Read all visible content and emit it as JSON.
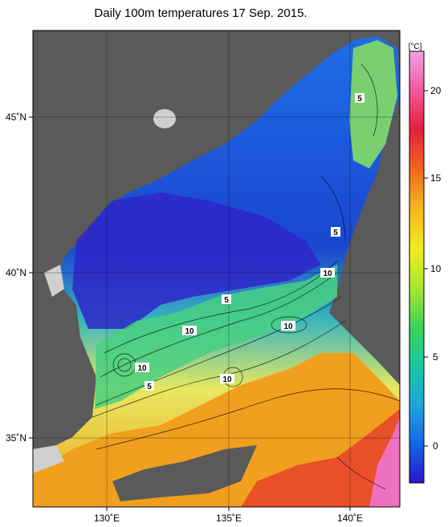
{
  "title": "Daily 100m temperatures 17 Sep. 2015.",
  "colorbar": {
    "unit": "[°C]",
    "ticks": [
      "20",
      "15",
      "10",
      "5",
      "0"
    ],
    "colors": [
      "#2a16c8",
      "#1466e6",
      "#1ea6dc",
      "#19c8a0",
      "#3cd25a",
      "#a6e632",
      "#f2ec1e",
      "#f6b41e",
      "#f0641e",
      "#e61e3c",
      "#f05aa0",
      "#f4a0e6"
    ]
  },
  "axes": {
    "x_ticks": [
      "130˚E",
      "135˚E",
      "140˚E"
    ],
    "y_ticks": [
      "45˚N",
      "40˚N",
      "35˚N"
    ]
  },
  "contour_labels": [
    "5",
    "5",
    "10",
    "5",
    "10",
    "10",
    "10",
    "5",
    "10"
  ],
  "colors": {
    "land": "#5a5a5a",
    "coast_mask": "#d0d0d0",
    "cold": "#1e50d2",
    "warm": "#f0a01e"
  }
}
